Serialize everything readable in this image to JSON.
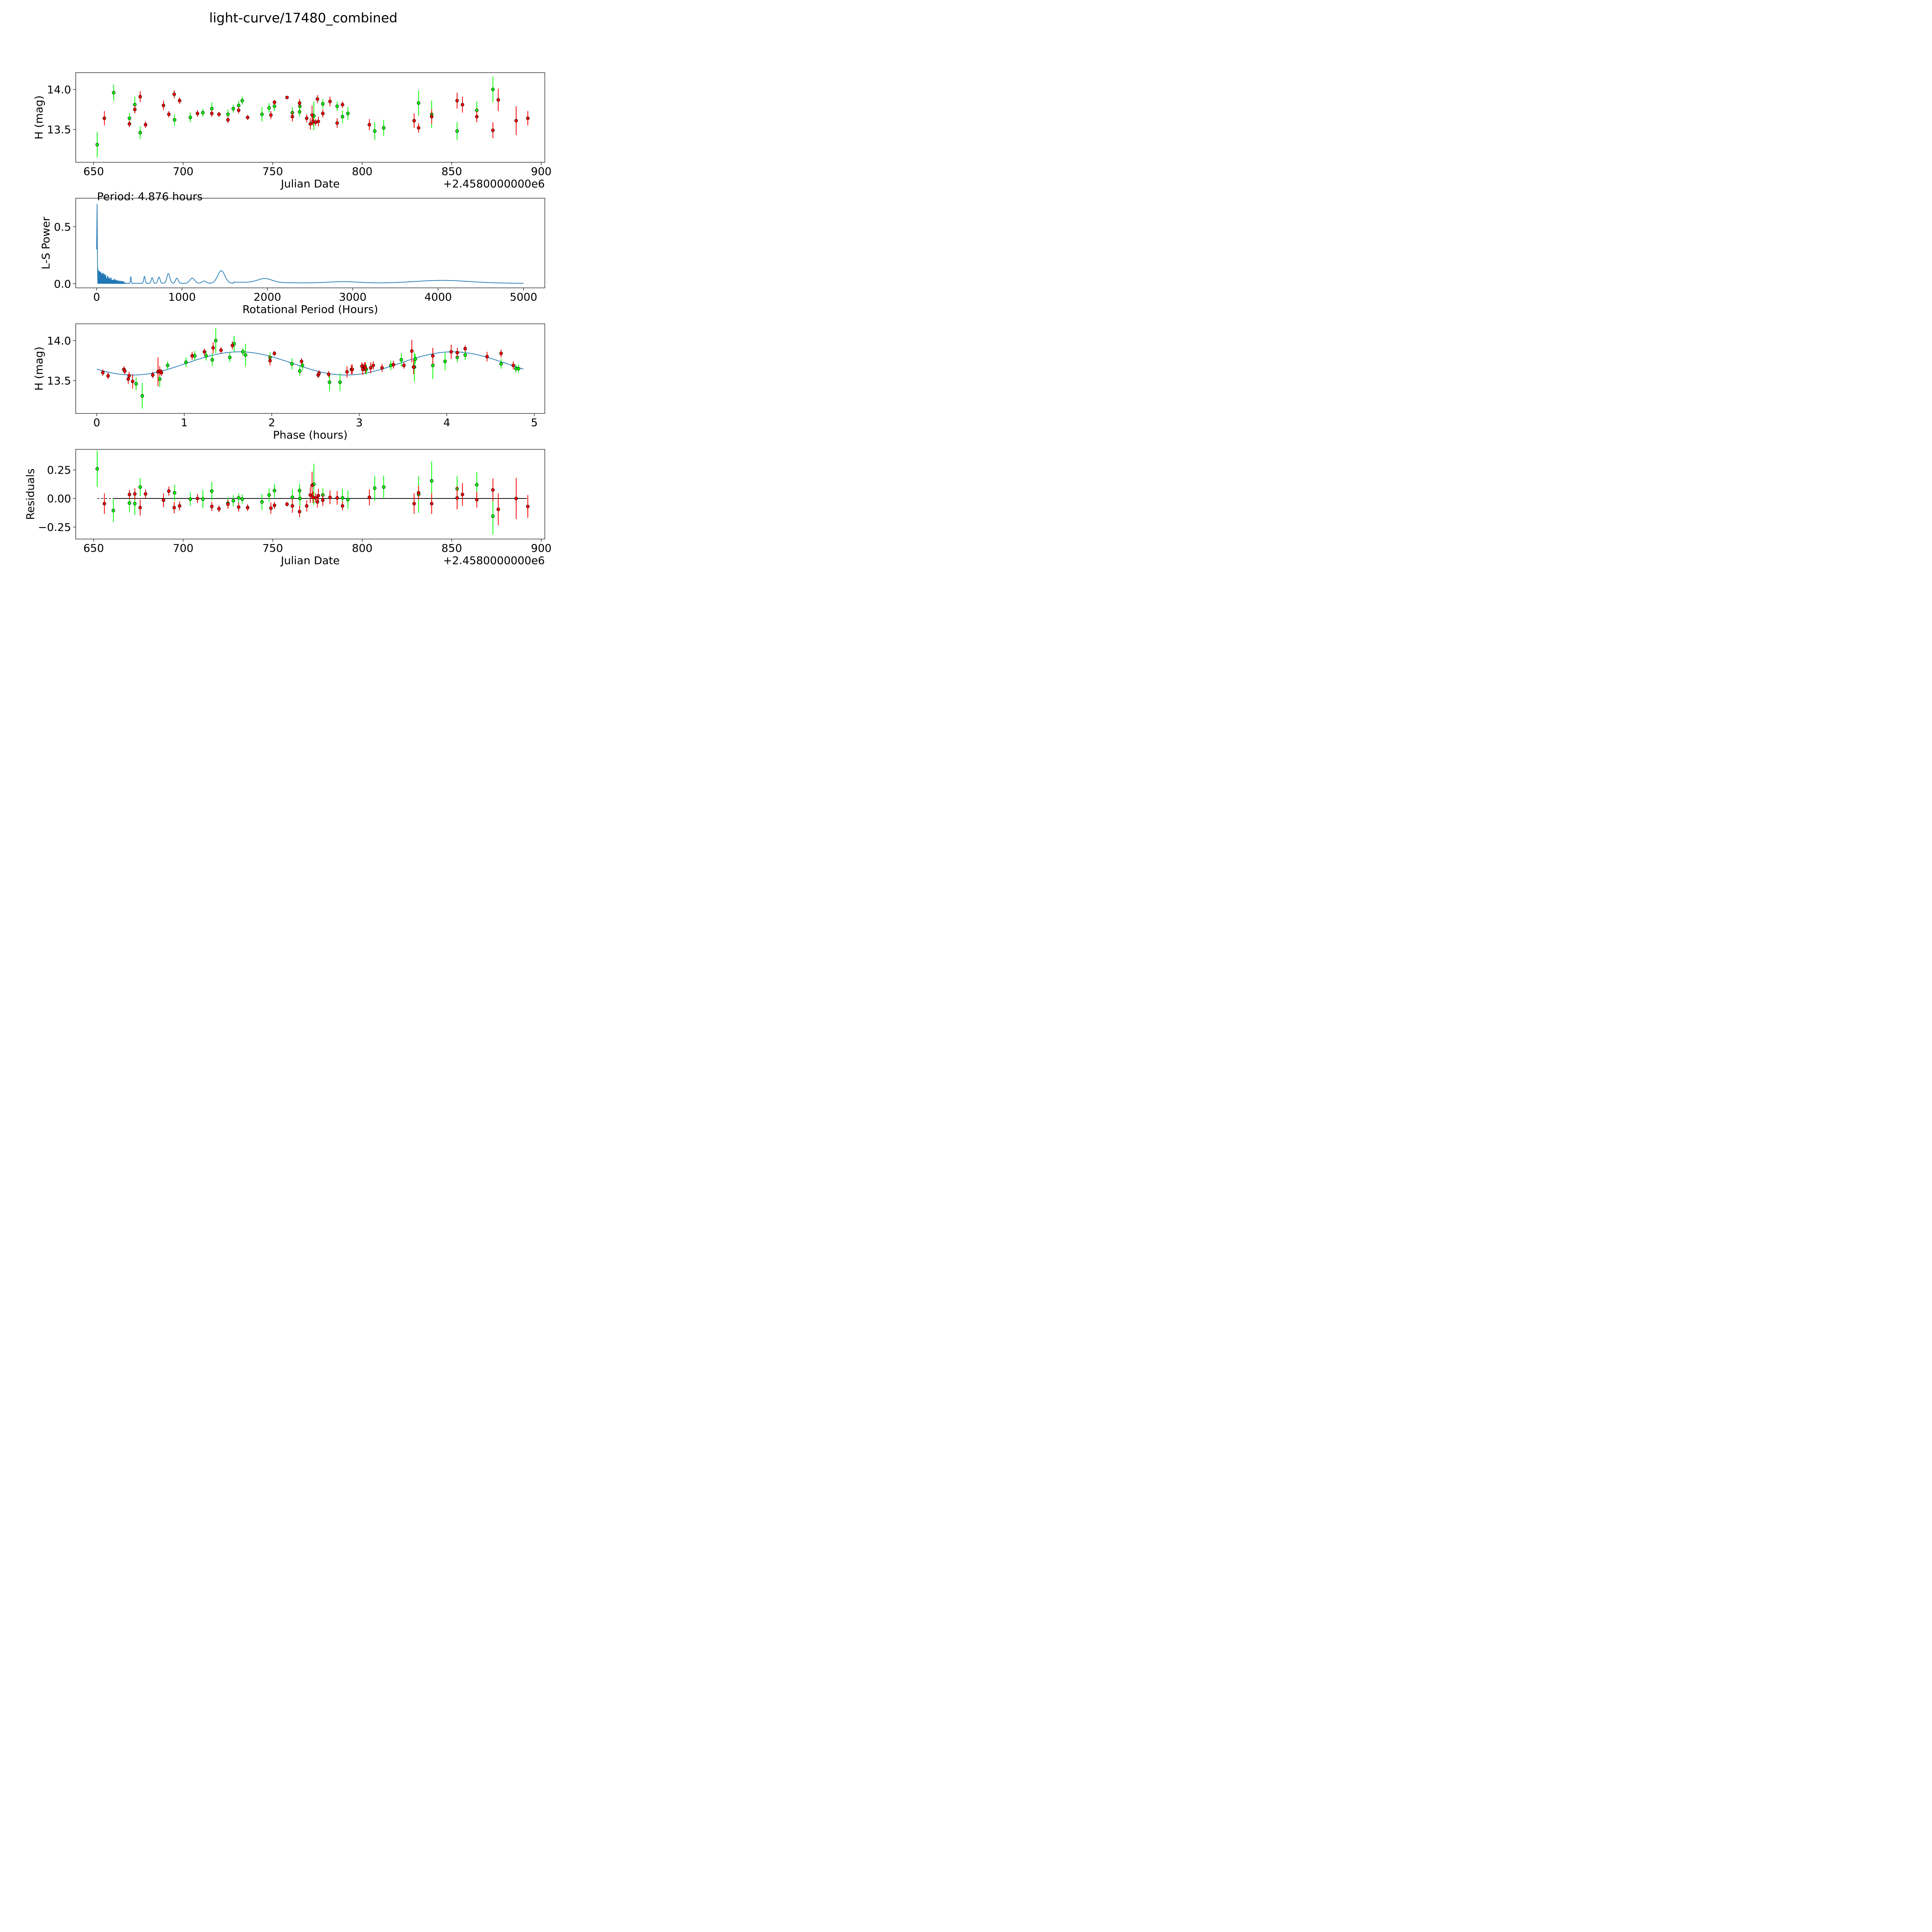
{
  "figure": {
    "title": "light-curve/17480_combined"
  },
  "colors": {
    "green": "#00ff00",
    "red": "#ff0000",
    "line": "#1f77b4",
    "zero_line": "#000000"
  },
  "chart_data": [
    {
      "id": "lightcurve",
      "type": "scatter",
      "xlabel": "Julian Date",
      "ylabel": "H (mag)",
      "offset_label": "+2.4580000000e6",
      "xlim": [
        640,
        902
      ],
      "ylim": [
        13.09,
        14.21
      ],
      "xticks": [
        650,
        700,
        750,
        800,
        850,
        900
      ],
      "yticks": [
        13.5,
        14.0
      ],
      "x_tick_labels": [
        "650",
        "700",
        "750",
        "800",
        "850",
        "900"
      ],
      "y_tick_labels": [
        "13.5",
        "14.0"
      ],
      "points_green": [
        [
          652.0,
          13.31,
          0.16
        ],
        [
          661.2,
          13.96,
          0.1
        ],
        [
          670.0,
          13.64,
          0.06
        ],
        [
          673.0,
          13.81,
          0.1
        ],
        [
          676.0,
          13.46,
          0.08
        ],
        [
          695.2,
          13.62,
          0.07
        ],
        [
          704.0,
          13.65,
          0.06
        ],
        [
          711.0,
          13.71,
          0.05
        ],
        [
          716.0,
          13.76,
          0.08
        ],
        [
          725.0,
          13.69,
          0.06
        ],
        [
          728.0,
          13.76,
          0.05
        ],
        [
          731.0,
          13.8,
          0.06
        ],
        [
          733.0,
          13.86,
          0.05
        ],
        [
          744.0,
          13.69,
          0.09
        ],
        [
          748.0,
          13.77,
          0.06
        ],
        [
          751.0,
          13.79,
          0.06
        ],
        [
          761.0,
          13.71,
          0.07
        ],
        [
          765.0,
          13.72,
          0.06
        ],
        [
          765.2,
          13.79,
          0.07
        ],
        [
          773.0,
          13.67,
          0.18
        ],
        [
          778.0,
          13.82,
          0.06
        ],
        [
          786.0,
          13.79,
          0.06
        ],
        [
          789.0,
          13.66,
          0.08
        ],
        [
          792.0,
          13.7,
          0.08
        ],
        [
          807.0,
          13.48,
          0.11
        ],
        [
          812.0,
          13.52,
          0.1
        ],
        [
          831.5,
          13.83,
          0.16
        ],
        [
          838.8,
          13.69,
          0.17
        ],
        [
          853.0,
          13.48,
          0.11
        ],
        [
          864.0,
          13.74,
          0.11
        ],
        [
          873.0,
          14.0,
          0.16
        ]
      ],
      "points_red": [
        [
          656.0,
          13.64,
          0.09
        ],
        [
          670.0,
          13.57,
          0.04
        ],
        [
          673.0,
          13.75,
          0.05
        ],
        [
          676.0,
          13.91,
          0.07
        ],
        [
          679.0,
          13.56,
          0.04
        ],
        [
          689.0,
          13.8,
          0.06
        ],
        [
          692.0,
          13.69,
          0.04
        ],
        [
          695.0,
          13.94,
          0.05
        ],
        [
          698.0,
          13.86,
          0.04
        ],
        [
          708.0,
          13.7,
          0.04
        ],
        [
          716.0,
          13.7,
          0.04
        ],
        [
          720.0,
          13.69,
          0.03
        ],
        [
          725.0,
          13.62,
          0.04
        ],
        [
          731.0,
          13.74,
          0.04
        ],
        [
          736.0,
          13.65,
          0.03
        ],
        [
          749.0,
          13.68,
          0.05
        ],
        [
          751.0,
          13.84,
          0.03
        ],
        [
          758.0,
          13.9,
          0.02
        ],
        [
          761.0,
          13.66,
          0.06
        ],
        [
          765.0,
          13.83,
          0.05
        ],
        [
          769.0,
          13.64,
          0.05
        ],
        [
          771.0,
          13.57,
          0.07
        ],
        [
          772.0,
          13.68,
          0.12
        ],
        [
          772.5,
          13.6,
          0.05
        ],
        [
          774.0,
          13.59,
          0.04
        ],
        [
          775.0,
          13.88,
          0.05
        ],
        [
          775.5,
          13.6,
          0.06
        ],
        [
          778.0,
          13.7,
          0.05
        ],
        [
          782.0,
          13.85,
          0.06
        ],
        [
          786.0,
          13.58,
          0.06
        ],
        [
          789.0,
          13.81,
          0.04
        ],
        [
          804.0,
          13.56,
          0.07
        ],
        [
          829.0,
          13.61,
          0.09
        ],
        [
          831.5,
          13.52,
          0.06
        ],
        [
          838.8,
          13.66,
          0.09
        ],
        [
          853.0,
          13.86,
          0.1
        ],
        [
          856.0,
          13.81,
          0.1
        ],
        [
          864.0,
          13.66,
          0.07
        ],
        [
          873.0,
          13.49,
          0.1
        ],
        [
          876.0,
          13.87,
          0.14
        ],
        [
          886.0,
          13.61,
          0.18
        ],
        [
          892.5,
          13.64,
          0.09
        ]
      ]
    },
    {
      "id": "periodogram",
      "type": "line",
      "xlabel": "Rotational Period (Hours)",
      "ylabel": "L-S Power",
      "annotation": "Period: 4.876 hours",
      "xlim": [
        -245,
        5250
      ],
      "ylim": [
        -0.036,
        0.75
      ],
      "xticks": [
        0,
        1000,
        2000,
        3000,
        4000,
        5000
      ],
      "yticks": [
        0.0,
        0.5
      ],
      "x_tick_labels": [
        "0",
        "1000",
        "2000",
        "3000",
        "4000",
        "5000"
      ],
      "y_tick_labels": [
        "0.0",
        "0.5"
      ]
    },
    {
      "id": "phased",
      "type": "scatter",
      "xlabel": "Phase (hours)",
      "ylabel": "H (mag)",
      "xlim": [
        -0.24,
        5.12
      ],
      "ylim": [
        13.09,
        14.21
      ],
      "xticks": [
        0,
        1,
        2,
        3,
        4,
        5
      ],
      "yticks": [
        13.5,
        14.0
      ],
      "x_tick_labels": [
        "0",
        "1",
        "2",
        "3",
        "4",
        "5"
      ],
      "y_tick_labels": [
        "13.5",
        "14.0"
      ],
      "model": {
        "period": 4.876,
        "mean": 13.715,
        "amplitude": 0.145,
        "phase_of_min": 0.41
      },
      "points_green": [
        [
          0.52,
          13.31,
          0.16
        ],
        [
          0.72,
          13.52,
          0.1
        ],
        [
          0.45,
          13.46,
          0.08
        ],
        [
          0.81,
          13.69,
          0.05
        ],
        [
          1.02,
          13.73,
          0.06
        ],
        [
          1.12,
          13.81,
          0.06
        ],
        [
          1.25,
          13.81,
          0.06
        ],
        [
          1.32,
          13.76,
          0.08
        ],
        [
          1.36,
          14.0,
          0.16
        ],
        [
          1.52,
          13.79,
          0.06
        ],
        [
          1.57,
          13.96,
          0.1
        ],
        [
          1.67,
          13.86,
          0.05
        ],
        [
          1.7,
          13.82,
          0.14
        ],
        [
          1.98,
          13.79,
          0.06
        ],
        [
          2.23,
          13.71,
          0.07
        ],
        [
          2.32,
          13.62,
          0.06
        ],
        [
          2.35,
          13.69,
          0.06
        ],
        [
          2.66,
          13.48,
          0.11
        ],
        [
          2.78,
          13.48,
          0.11
        ],
        [
          3.07,
          13.64,
          0.06
        ],
        [
          3.08,
          13.64,
          0.06
        ],
        [
          3.36,
          13.69,
          0.06
        ],
        [
          3.48,
          13.76,
          0.08
        ],
        [
          3.63,
          13.67,
          0.18
        ],
        [
          3.64,
          13.77,
          0.06
        ],
        [
          3.84,
          13.69,
          0.17
        ],
        [
          3.98,
          13.74,
          0.11
        ],
        [
          4.12,
          13.79,
          0.06
        ],
        [
          4.21,
          13.82,
          0.06
        ],
        [
          4.62,
          13.71,
          0.06
        ],
        [
          4.79,
          13.65,
          0.05
        ],
        [
          4.82,
          13.65,
          0.05
        ]
      ],
      "points_red": [
        [
          0.07,
          13.6,
          0.04
        ],
        [
          0.13,
          13.56,
          0.04
        ],
        [
          0.31,
          13.64,
          0.04
        ],
        [
          0.32,
          13.62,
          0.04
        ],
        [
          0.36,
          13.52,
          0.06
        ],
        [
          0.37,
          13.56,
          0.05
        ],
        [
          0.41,
          13.49,
          0.09
        ],
        [
          0.64,
          13.57,
          0.04
        ],
        [
          0.7,
          13.61,
          0.18
        ],
        [
          0.72,
          13.62,
          0.06
        ],
        [
          0.74,
          13.6,
          0.04
        ],
        [
          1.09,
          13.81,
          0.05
        ],
        [
          1.23,
          13.86,
          0.04
        ],
        [
          1.33,
          13.91,
          0.07
        ],
        [
          1.42,
          13.88,
          0.04
        ],
        [
          1.55,
          13.94,
          0.05
        ],
        [
          1.98,
          13.75,
          0.06
        ],
        [
          2.03,
          13.84,
          0.03
        ],
        [
          2.34,
          13.74,
          0.04
        ],
        [
          2.53,
          13.57,
          0.04
        ],
        [
          2.54,
          13.59,
          0.04
        ],
        [
          2.65,
          13.58,
          0.04
        ],
        [
          2.86,
          13.61,
          0.07
        ],
        [
          2.91,
          13.64,
          0.06
        ],
        [
          2.92,
          13.64,
          0.06
        ],
        [
          3.03,
          13.68,
          0.05
        ],
        [
          3.04,
          13.64,
          0.07
        ],
        [
          3.06,
          13.68,
          0.05
        ],
        [
          3.07,
          13.66,
          0.07
        ],
        [
          3.13,
          13.66,
          0.07
        ],
        [
          3.16,
          13.69,
          0.05
        ],
        [
          3.26,
          13.66,
          0.05
        ],
        [
          3.39,
          13.7,
          0.05
        ],
        [
          3.51,
          13.69,
          0.04
        ],
        [
          3.6,
          13.87,
          0.14
        ],
        [
          3.62,
          13.67,
          0.09
        ],
        [
          3.84,
          13.81,
          0.1
        ],
        [
          4.05,
          13.86,
          0.09
        ],
        [
          4.12,
          13.85,
          0.06
        ],
        [
          4.21,
          13.9,
          0.04
        ],
        [
          4.46,
          13.8,
          0.06
        ],
        [
          4.62,
          13.84,
          0.05
        ],
        [
          4.76,
          13.69,
          0.05
        ]
      ]
    },
    {
      "id": "residuals",
      "type": "scatter",
      "xlabel": "Julian Date",
      "ylabel": "Residuals",
      "offset_label": "+2.4580000000e6",
      "xlim": [
        640,
        902
      ],
      "ylim": [
        -0.355,
        0.43
      ],
      "xticks": [
        650,
        700,
        750,
        800,
        850,
        900
      ],
      "yticks": [
        -0.25,
        0.0,
        0.25
      ],
      "x_tick_labels": [
        "650",
        "700",
        "750",
        "800",
        "850",
        "900"
      ],
      "y_tick_labels": [
        "−0.25",
        "0.00",
        "0.25"
      ],
      "zero_line": {
        "x_start": 652,
        "x_end": 892
      },
      "points_green": [
        [
          652.0,
          0.26,
          0.16
        ],
        [
          661.0,
          -0.105,
          0.1
        ],
        [
          670.0,
          -0.04,
          0.08
        ],
        [
          673.0,
          -0.045,
          0.1
        ],
        [
          676.0,
          0.1,
          0.08
        ],
        [
          695.2,
          0.05,
          0.07
        ],
        [
          704.0,
          -0.005,
          0.06
        ],
        [
          711.0,
          -0.005,
          0.08
        ],
        [
          716.0,
          0.065,
          0.08
        ],
        [
          725.0,
          -0.04,
          0.05
        ],
        [
          728.0,
          -0.02,
          0.05
        ],
        [
          731.0,
          0.005,
          0.04
        ],
        [
          733.0,
          -0.005,
          0.04
        ],
        [
          744.0,
          -0.03,
          0.07
        ],
        [
          748.0,
          0.03,
          0.06
        ],
        [
          751.0,
          0.07,
          0.06
        ],
        [
          761.0,
          0.01,
          0.07
        ],
        [
          765.0,
          0.07,
          0.06
        ],
        [
          765.2,
          0.0,
          0.07
        ],
        [
          773.0,
          0.125,
          0.18
        ],
        [
          778.0,
          0.03,
          0.06
        ],
        [
          786.0,
          0.005,
          0.06
        ],
        [
          789.0,
          0.005,
          0.08
        ],
        [
          792.0,
          -0.01,
          0.08
        ],
        [
          807.0,
          0.09,
          0.11
        ],
        [
          812.0,
          0.1,
          0.1
        ],
        [
          831.5,
          0.035,
          0.16
        ],
        [
          838.8,
          0.155,
          0.17
        ],
        [
          853.0,
          0.085,
          0.11
        ],
        [
          864.0,
          0.12,
          0.11
        ],
        [
          873.0,
          -0.155,
          0.16
        ]
      ],
      "points_red": [
        [
          656.0,
          -0.045,
          0.09
        ],
        [
          670.0,
          0.035,
          0.04
        ],
        [
          673.0,
          0.04,
          0.05
        ],
        [
          676.0,
          -0.08,
          0.07
        ],
        [
          679.0,
          0.04,
          0.04
        ],
        [
          689.0,
          -0.015,
          0.06
        ],
        [
          692.0,
          0.065,
          0.04
        ],
        [
          695.0,
          -0.08,
          0.05
        ],
        [
          698.0,
          -0.065,
          0.04
        ],
        [
          708.0,
          0.0,
          0.04
        ],
        [
          716.0,
          -0.07,
          0.04
        ],
        [
          720.0,
          -0.09,
          0.03
        ],
        [
          725.0,
          -0.05,
          0.04
        ],
        [
          731.0,
          -0.075,
          0.04
        ],
        [
          736.0,
          -0.08,
          0.03
        ],
        [
          749.0,
          -0.085,
          0.05
        ],
        [
          751.0,
          -0.06,
          0.03
        ],
        [
          758.0,
          -0.05,
          0.02
        ],
        [
          761.0,
          -0.065,
          0.06
        ],
        [
          765.0,
          -0.115,
          0.05
        ],
        [
          769.0,
          -0.065,
          0.05
        ],
        [
          771.0,
          0.03,
          0.07
        ],
        [
          772.0,
          0.115,
          0.12
        ],
        [
          772.5,
          0.01,
          0.05
        ],
        [
          774.0,
          0.005,
          0.04
        ],
        [
          775.0,
          -0.03,
          0.05
        ],
        [
          775.5,
          0.025,
          0.06
        ],
        [
          778.0,
          -0.015,
          0.05
        ],
        [
          782.0,
          0.01,
          0.06
        ],
        [
          786.0,
          0.005,
          0.06
        ],
        [
          789.0,
          -0.065,
          0.04
        ],
        [
          804.0,
          0.01,
          0.07
        ],
        [
          829.0,
          -0.045,
          0.09
        ],
        [
          831.5,
          0.05,
          0.06
        ],
        [
          838.8,
          -0.045,
          0.09
        ],
        [
          853.0,
          0.005,
          0.1
        ],
        [
          856.0,
          0.035,
          0.1
        ],
        [
          864.0,
          -0.01,
          0.07
        ],
        [
          873.0,
          0.075,
          0.1
        ],
        [
          876.0,
          -0.095,
          0.14
        ],
        [
          886.0,
          0.0,
          0.18
        ],
        [
          892.5,
          -0.07,
          0.1
        ]
      ]
    }
  ]
}
